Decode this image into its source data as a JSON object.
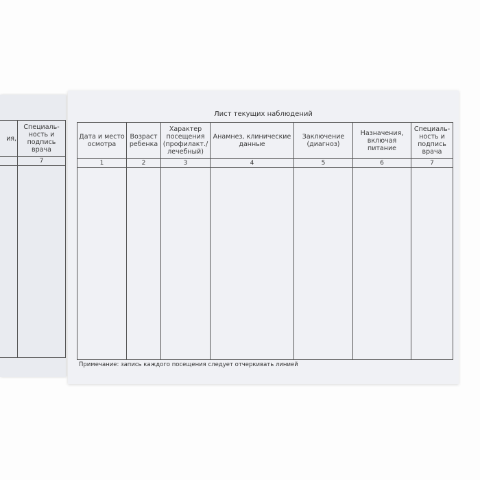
{
  "left_page": {
    "headers": [
      "ия,",
      "Специаль-ность и подпись врача"
    ],
    "numbers": [
      "",
      "7"
    ]
  },
  "right_page": {
    "title": "Лист текущих наблюдений",
    "headers": [
      "Дата и место осмотра",
      "Возраст ребенка",
      "Характер посещения (профилакт./ лечебный)",
      "Анамнез, клинические данные",
      "Заключение (диагноз)",
      "Назначения, включая питание",
      "Специаль-ность и подпись врача"
    ],
    "numbers": [
      "1",
      "2",
      "3",
      "4",
      "5",
      "6",
      "7"
    ],
    "note": "Примечание: запись каждого посещения следует отчеркивать линией"
  }
}
